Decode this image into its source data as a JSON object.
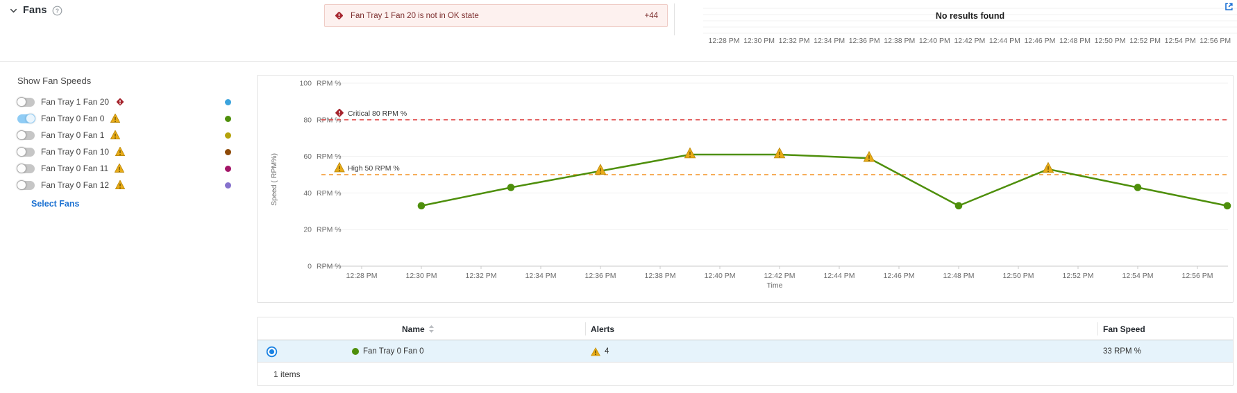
{
  "header": {
    "title": "Fans"
  },
  "alert_banner": {
    "message": "Fan Tray 1 Fan 20 is not in OK state",
    "more_count": "+44"
  },
  "mini_chart": {
    "empty_text": "No results found",
    "time_ticks": [
      "12:28 PM",
      "12:30 PM",
      "12:32 PM",
      "12:34 PM",
      "12:36 PM",
      "12:38 PM",
      "12:40 PM",
      "12:42 PM",
      "12:44 PM",
      "12:46 PM",
      "12:48 PM",
      "12:50 PM",
      "12:52 PM",
      "12:54 PM",
      "12:56 PM"
    ]
  },
  "sidebar": {
    "title": "Show Fan Speeds",
    "select_link": "Select Fans",
    "fans": [
      {
        "label": "Fan Tray 1 Fan 20",
        "status": "critical",
        "color": "#3ba3dd",
        "enabled": false
      },
      {
        "label": "Fan Tray 0 Fan 0",
        "status": "warning",
        "color": "#4e8f0b",
        "enabled": true
      },
      {
        "label": "Fan Tray 0 Fan 1",
        "status": "warning",
        "color": "#b5a30c",
        "enabled": false
      },
      {
        "label": "Fan Tray 0 Fan 10",
        "status": "warning",
        "color": "#8e4a08",
        "enabled": false
      },
      {
        "label": "Fan Tray 0 Fan 11",
        "status": "warning",
        "color": "#a31567",
        "enabled": false
      },
      {
        "label": "Fan Tray 0 Fan 12",
        "status": "warning",
        "color": "#8672cd",
        "enabled": false
      }
    ]
  },
  "chart_data": {
    "type": "line",
    "title": "",
    "xlabel": "Time",
    "ylabel": "Speed ( RPM%)",
    "ylim": [
      0,
      100
    ],
    "grid": true,
    "legend_position": "none",
    "y_ticks": [
      0,
      20,
      40,
      60,
      80,
      100
    ],
    "y_tick_unit": "RPM %",
    "x_axis_start": "12:28 PM",
    "x_tick_interval_min": 2,
    "x_axis_ticks": [
      "12:28 PM",
      "12:30 PM",
      "12:32 PM",
      "12:34 PM",
      "12:36 PM",
      "12:38 PM",
      "12:40 PM",
      "12:42 PM",
      "12:44 PM",
      "12:46 PM",
      "12:48 PM",
      "12:50 PM",
      "12:52 PM",
      "12:54 PM",
      "12:56 PM"
    ],
    "series": [
      {
        "name": "Fan Tray 0 Fan 0",
        "color": "#4e8f0b",
        "x": [
          "12:30 PM",
          "12:33 PM",
          "12:36 PM",
          "12:39 PM",
          "12:42 PM",
          "12:45 PM",
          "12:48 PM",
          "12:51 PM",
          "12:54 PM",
          "12:57 PM"
        ],
        "x_offsets_min": [
          2,
          5,
          8,
          11,
          14,
          17,
          20,
          23,
          26,
          29
        ],
        "values": [
          33,
          43,
          52,
          61,
          61,
          59,
          33,
          53,
          43,
          33
        ]
      }
    ],
    "thresholds": [
      {
        "name": "Critical",
        "value": 80,
        "label": "Critical 80 RPM %",
        "color": "#e25555",
        "line_style": "dashed",
        "icon": "critical-diamond-icon"
      },
      {
        "name": "High",
        "value": 50,
        "label": "High 50 RPM %",
        "color": "#f39222",
        "line_style": "dashed",
        "icon": "warning-triangle-icon"
      }
    ],
    "marker_rule": "points above High threshold use warning-triangle markers"
  },
  "table": {
    "columns": [
      "Name",
      "Alerts",
      "Fan Speed"
    ],
    "rows": [
      {
        "selected": true,
        "color": "#4e8f0b",
        "name": "Fan Tray 0 Fan 0",
        "alerts": "4",
        "fan_speed": "33 RPM %"
      }
    ],
    "footer": "1 items"
  }
}
